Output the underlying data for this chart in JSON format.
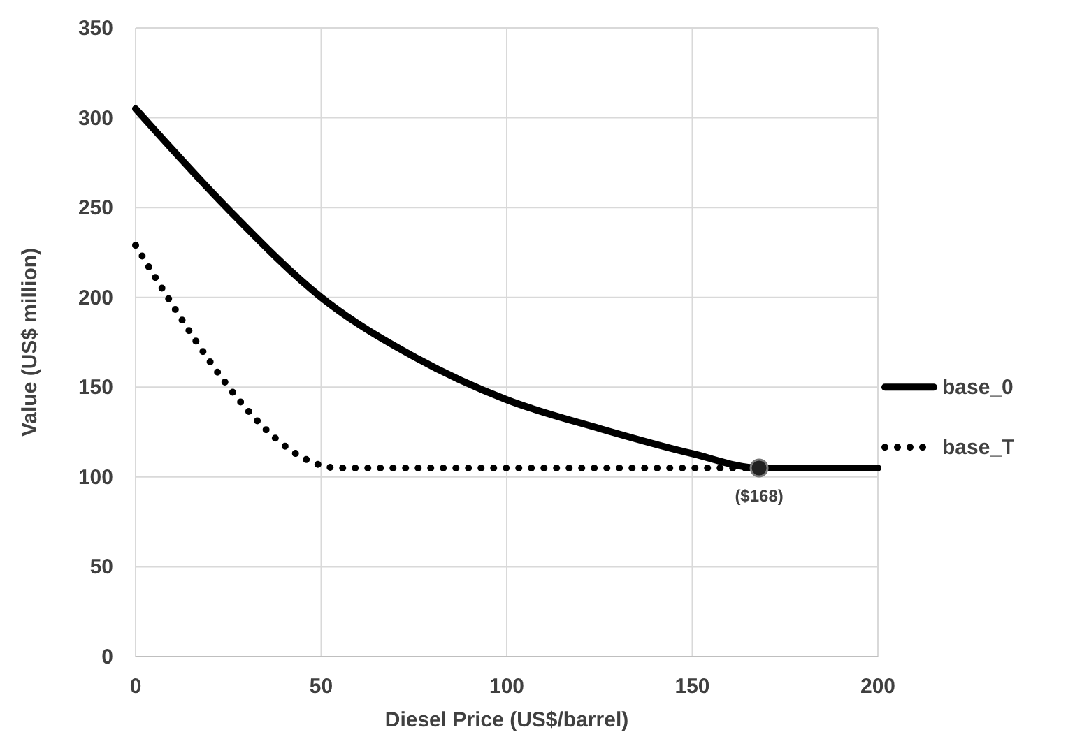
{
  "chart_data": {
    "type": "line",
    "xlabel": "Diesel Price (US$/barrel)",
    "ylabel": "Value (US$ million)",
    "xlim": [
      0,
      200
    ],
    "xticks": [
      0,
      50,
      100,
      150,
      200
    ],
    "ylim": [
      0,
      350
    ],
    "yticks": [
      0,
      50,
      100,
      150,
      200,
      250,
      300,
      350
    ],
    "grid": true,
    "legend": "right",
    "marker": "none",
    "series": [
      {
        "name": "base_0",
        "color": "#000000",
        "line_style": "solid",
        "x": [
          0,
          25,
          50,
          75,
          100,
          125,
          150,
          168,
          200
        ],
        "values": [
          305,
          249,
          200,
          167,
          143,
          127,
          113,
          105,
          105
        ]
      },
      {
        "name": "base_T",
        "color": "#000000",
        "line_style": "dotted",
        "x": [
          0,
          55,
          168
        ],
        "values": [
          229,
          105,
          105
        ]
      }
    ],
    "annotations": [
      {
        "text": "($168)",
        "x": 168,
        "y": 105
      }
    ]
  }
}
